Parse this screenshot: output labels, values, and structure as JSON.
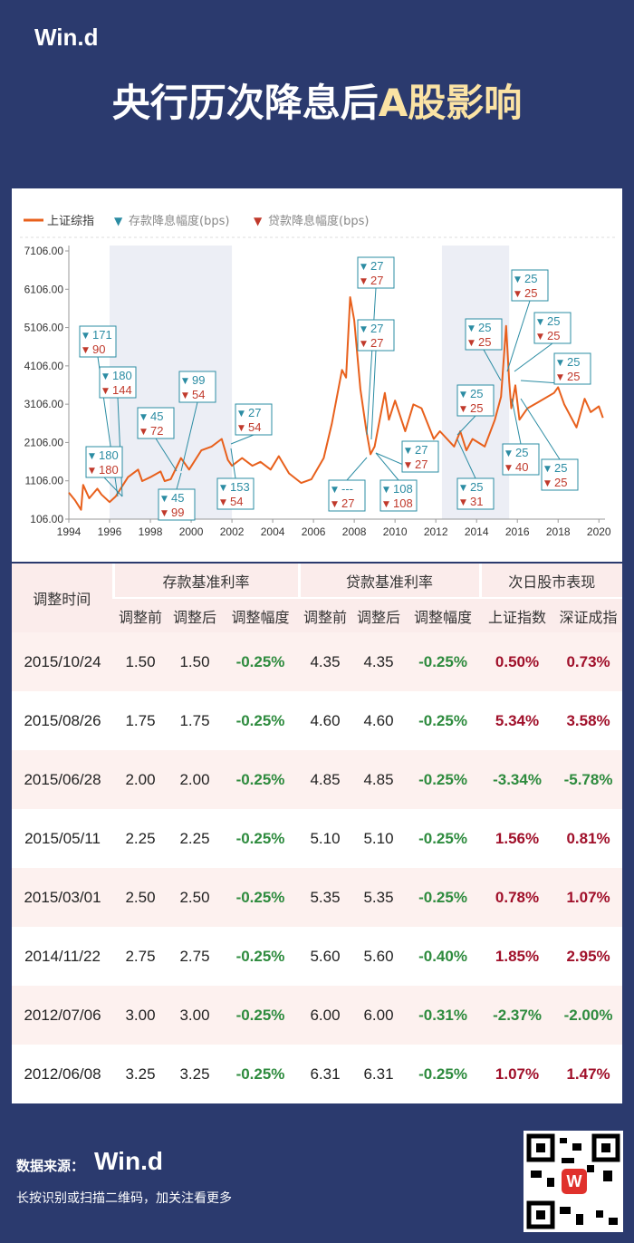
{
  "header": {
    "brand": "Win.d",
    "title": "央行历次降息后",
    "title_highlight": "A股影响"
  },
  "chart_data": {
    "type": "line",
    "legend": {
      "line": "上证综指",
      "deposit": "存款降息幅度(bps)",
      "loan": "贷款降息幅度(bps)"
    },
    "series": [
      {
        "name": "上证综指",
        "color": "#e8601c",
        "x": [
          1994.0,
          1994.3,
          1994.6,
          1994.7,
          1995.0,
          1995.4,
          1995.6,
          1996.0,
          1996.3,
          1996.9,
          1997.4,
          1997.6,
          1998.0,
          1998.5,
          1998.7,
          1999.0,
          1999.5,
          1999.9,
          2000.5,
          2001.0,
          2001.5,
          2001.8,
          2002.0,
          2002.5,
          2003.0,
          2003.4,
          2003.9,
          2004.3,
          2004.8,
          2005.4,
          2005.9,
          2006.5,
          2006.9,
          2007.4,
          2007.6,
          2007.8,
          2008.0,
          2008.3,
          2008.6,
          2008.8,
          2009.0,
          2009.5,
          2009.7,
          2010.0,
          2010.5,
          2010.9,
          2011.3,
          2011.9,
          2012.2,
          2012.9,
          2013.2,
          2013.5,
          2013.8,
          2014.4,
          2014.9,
          2015.2,
          2015.45,
          2015.6,
          2015.7,
          2015.9,
          2016.1,
          2016.5,
          2017.0,
          2017.8,
          2018.0,
          2018.3,
          2018.9,
          2019.3,
          2019.6,
          2020.0,
          2020.2
        ],
        "values": [
          800,
          600,
          350,
          1000,
          650,
          900,
          750,
          550,
          700,
          1200,
          1400,
          1100,
          1200,
          1350,
          1100,
          1150,
          1700,
          1400,
          1900,
          2000,
          2200,
          1650,
          1500,
          1700,
          1500,
          1600,
          1400,
          1750,
          1300,
          1050,
          1150,
          1700,
          2600,
          4000,
          3800,
          5900,
          5300,
          3500,
          2400,
          1800,
          2000,
          3400,
          2700,
          3200,
          2400,
          3100,
          3000,
          2200,
          2400,
          2000,
          2400,
          1900,
          2200,
          2000,
          2700,
          3300,
          5150,
          3700,
          3000,
          3600,
          2700,
          3000,
          3150,
          3400,
          3550,
          3100,
          2500,
          3250,
          2900,
          3050,
          2750
        ]
      }
    ],
    "deposit_color": "#2b8ca3",
    "loan_color": "#c0392b",
    "shaded": [
      [
        1996,
        2002
      ],
      [
        2012.3,
        2015.6
      ]
    ],
    "xlim": [
      1994,
      2020.3
    ],
    "xticks": [
      1994,
      1996,
      1998,
      2000,
      2002,
      2004,
      2006,
      2008,
      2010,
      2012,
      2014,
      2016,
      2018,
      2020
    ],
    "ylim": [
      106,
      7106
    ],
    "yticks": [
      {
        "value": 106,
        "label": "106.00"
      },
      {
        "value": 1106,
        "label": "1106.00"
      },
      {
        "value": 2106,
        "label": "2106.00"
      },
      {
        "value": 3106,
        "label": "3106.00"
      },
      {
        "value": 4106,
        "label": "4106.00"
      },
      {
        "value": 5106,
        "label": "5106.00"
      },
      {
        "value": 6106,
        "label": "6106.00"
      },
      {
        "value": 7106,
        "label": "7106.00"
      }
    ],
    "annotations": [
      {
        "deposit": 171,
        "loan": 90
      },
      {
        "deposit": 180,
        "loan": 144
      },
      {
        "deposit": 180,
        "loan": 180
      },
      {
        "deposit": 45,
        "loan": 72
      },
      {
        "deposit": 45,
        "loan": 99
      },
      {
        "deposit": 99,
        "loan": 54
      },
      {
        "deposit": 27,
        "loan": 54
      },
      {
        "deposit": 153,
        "loan": 54
      },
      {
        "deposit": 27,
        "loan": 27
      },
      {
        "deposit": 27,
        "loan": 27
      },
      {
        "deposit": "---",
        "loan": 27
      },
      {
        "deposit": 27,
        "loan": 27
      },
      {
        "deposit": 108,
        "loan": 108
      },
      {
        "deposit": 25,
        "loan": 25
      },
      {
        "deposit": 25,
        "loan": 31
      },
      {
        "deposit": 25,
        "loan": 25
      },
      {
        "deposit": 25,
        "loan": 25
      },
      {
        "deposit": 25,
        "loan": 25
      },
      {
        "deposit": 25,
        "loan": 25
      },
      {
        "deposit": 25,
        "loan": 40
      },
      {
        "deposit": 25,
        "loan": 25
      }
    ]
  },
  "table": {
    "row_header": "调整时间",
    "groups": [
      "存款基准利率",
      "贷款基准利率",
      "次日股市表现"
    ],
    "columns": [
      "调整前",
      "调整后",
      "调整幅度",
      "调整前",
      "调整后",
      "调整幅度",
      "上证指数",
      "深证成指"
    ],
    "rows": [
      [
        "2015/10/24",
        "1.50",
        "1.50",
        "-0.25%",
        "4.35",
        "4.35",
        "-0.25%",
        "0.50%",
        "0.73%"
      ],
      [
        "2015/08/26",
        "1.75",
        "1.75",
        "-0.25%",
        "4.60",
        "4.60",
        "-0.25%",
        "5.34%",
        "3.58%"
      ],
      [
        "2015/06/28",
        "2.00",
        "2.00",
        "-0.25%",
        "4.85",
        "4.85",
        "-0.25%",
        "-3.34%",
        "-5.78%"
      ],
      [
        "2015/05/11",
        "2.25",
        "2.25",
        "-0.25%",
        "5.10",
        "5.10",
        "-0.25%",
        "1.56%",
        "0.81%"
      ],
      [
        "2015/03/01",
        "2.50",
        "2.50",
        "-0.25%",
        "5.35",
        "5.35",
        "-0.25%",
        "0.78%",
        "1.07%"
      ],
      [
        "2014/11/22",
        "2.75",
        "2.75",
        "-0.25%",
        "5.60",
        "5.60",
        "-0.40%",
        "1.85%",
        "2.95%"
      ],
      [
        "2012/07/06",
        "3.00",
        "3.00",
        "-0.25%",
        "6.00",
        "6.00",
        "-0.31%",
        "-2.37%",
        "-2.00%"
      ],
      [
        "2012/06/08",
        "3.25",
        "3.25",
        "-0.25%",
        "6.31",
        "6.31",
        "-0.25%",
        "1.07%",
        "1.47%"
      ]
    ]
  },
  "footer": {
    "source_label": "数据来源：",
    "source_brand": "Win.d",
    "note": "长按识别或扫描二维码，加关注看更多"
  }
}
